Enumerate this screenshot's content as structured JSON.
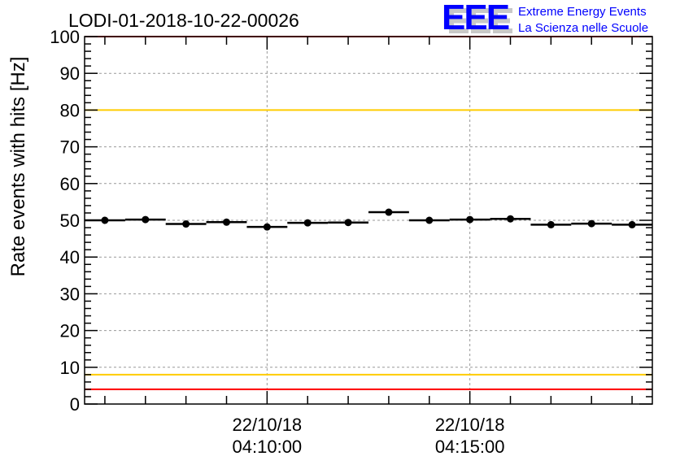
{
  "chart_data": {
    "type": "scatter",
    "title": "LODI-01-2018-10-22-00026",
    "xlabel": "",
    "ylabel": "Rate events with hits [Hz]",
    "ylim": [
      0,
      100
    ],
    "yticks": [
      "0",
      "10",
      "20",
      "30",
      "40",
      "50",
      "60",
      "70",
      "80",
      "90",
      "100"
    ],
    "xlim_minutes": [
      -4.5,
      9.5
    ],
    "xticks": [
      {
        "minute": 0,
        "date": "22/10/18",
        "time": "04:10:00"
      },
      {
        "minute": 5,
        "date": "22/10/18",
        "time": "04:15:00"
      }
    ],
    "bin_width_minutes": 1,
    "x_minutes": [
      -4,
      -3,
      -2,
      -1,
      0,
      1,
      2,
      3,
      4,
      5,
      6,
      7,
      8,
      9
    ],
    "values": [
      50.0,
      50.2,
      49.0,
      49.5,
      48.2,
      49.3,
      49.4,
      52.2,
      50.0,
      50.2,
      50.4,
      48.8,
      49.1,
      48.8
    ],
    "grid": true,
    "reference_lines": [
      {
        "value": 100,
        "color": "#ff0000"
      },
      {
        "value": 80,
        "color": "#ffcc00"
      },
      {
        "value": 8,
        "color": "#ffcc00"
      },
      {
        "value": 4,
        "color": "#ff0000"
      }
    ]
  },
  "logo": {
    "mark": "EEE",
    "line1": "Extreme Energy Events",
    "line2": "La Scienza nelle Scuole",
    "color": "#0000ff"
  }
}
